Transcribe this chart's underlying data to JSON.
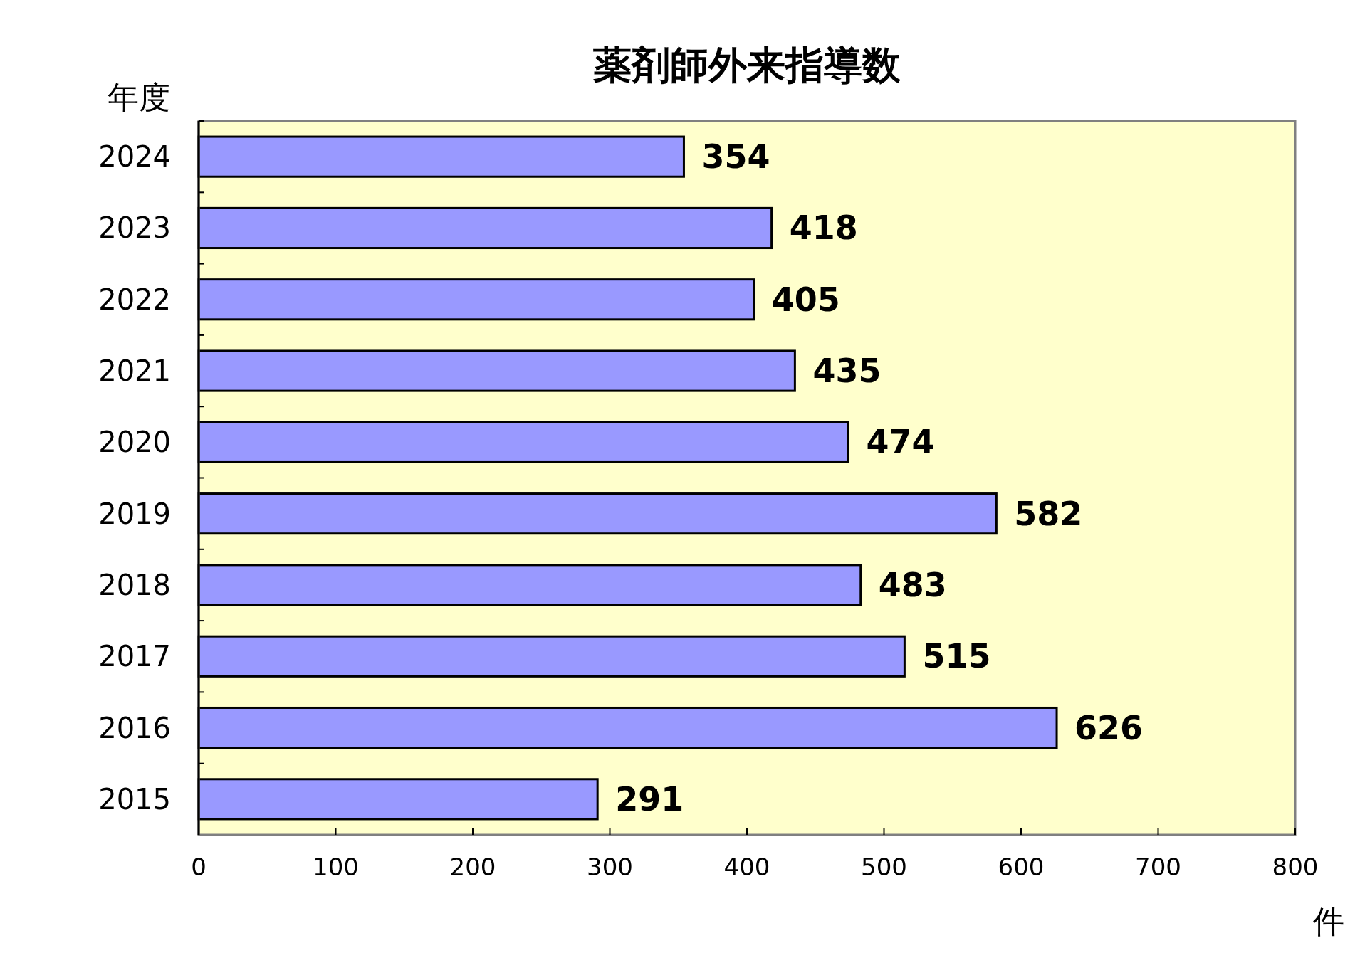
{
  "chart_data": {
    "type": "bar",
    "orientation": "horizontal",
    "title": "薬剤師外来指導数",
    "ylabel": "年度",
    "xlabel": "件",
    "categories": [
      "2024",
      "2023",
      "2022",
      "2021",
      "2020",
      "2019",
      "2018",
      "2017",
      "2016",
      "2015"
    ],
    "values": [
      354,
      418,
      405,
      435,
      474,
      582,
      483,
      515,
      626,
      291
    ],
    "color": "#9999ff",
    "xlim": [
      0,
      800
    ],
    "xticks": [
      0,
      100,
      200,
      300,
      400,
      500,
      600,
      700,
      800
    ],
    "data_labels": true
  }
}
